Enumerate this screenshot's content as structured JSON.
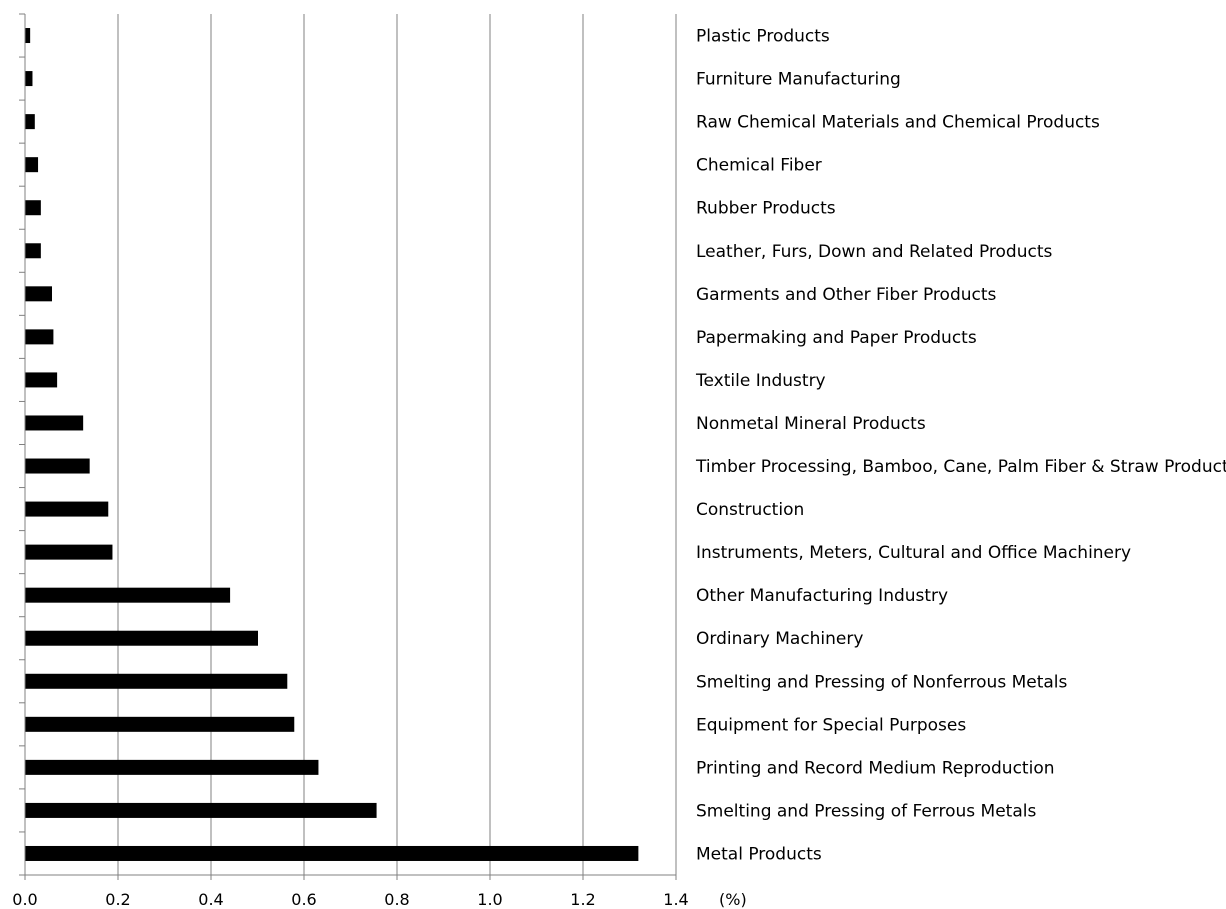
{
  "chart_data": {
    "type": "bar",
    "orientation": "horizontal",
    "categories": [
      "Plastic Products",
      "Furniture Manufacturing",
      "Raw Chemical Materials and Chemical Products",
      "Chemical Fiber",
      "Rubber Products",
      "Leather, Furs, Down and Related Products",
      "Garments and Other Fiber Products",
      "Papermaking and Paper Products",
      "Textile Industry",
      "Nonmetal Mineral Products",
      "Timber Processing, Bamboo, Cane, Palm Fiber & Straw Products",
      "Construction",
      "Instruments, Meters, Cultural and Office Machinery",
      "Other Manufacturing Industry",
      "Ordinary Machinery",
      "Smelting and Pressing of Nonferrous Metals",
      "Equipment for Special Purposes",
      "Printing and Record Medium Reproduction",
      "Smelting and Pressing of Ferrous Metals",
      "Metal Products"
    ],
    "values": [
      0.01,
      0.015,
      0.02,
      0.027,
      0.033,
      0.033,
      0.057,
      0.06,
      0.068,
      0.124,
      0.138,
      0.178,
      0.187,
      0.44,
      0.5,
      0.563,
      0.578,
      0.63,
      0.755,
      1.318
    ],
    "xlabel": "(%)",
    "xlim": [
      0,
      1.4
    ],
    "xticks": [
      "0.0",
      "0.2",
      "0.4",
      "0.6",
      "0.8",
      "1.0",
      "1.2",
      "1.4"
    ],
    "grid": "vertical",
    "colors": {
      "bar": "#000000",
      "grid": "#808080",
      "axis": "#808080"
    }
  }
}
